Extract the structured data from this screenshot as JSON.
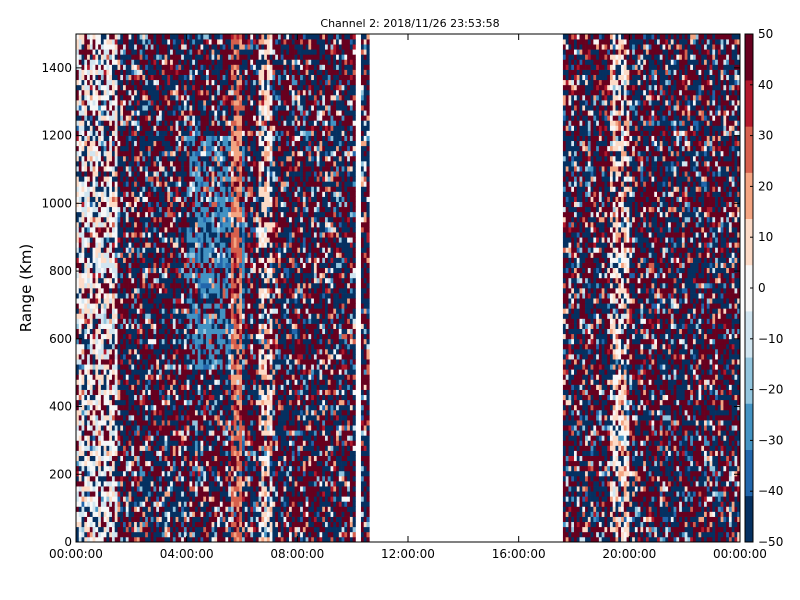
{
  "chart_data": {
    "type": "heatmap",
    "title": "Channel 2: 2018/11/26 23:53:58",
    "xlabel": "",
    "ylabel": "Range (Km)",
    "x_ticks": [
      "00:00:00",
      "04:00:00",
      "08:00:00",
      "12:00:00",
      "16:00:00",
      "20:00:00",
      "00:00:00"
    ],
    "x_tick_hours": [
      0,
      4,
      8,
      12,
      16,
      20,
      24
    ],
    "xlim_hours": [
      0,
      24
    ],
    "y_ticks": [
      "0",
      "200",
      "400",
      "600",
      "800",
      "1000",
      "1200",
      "1400"
    ],
    "y_tick_values": [
      0,
      200,
      400,
      600,
      800,
      1000,
      1200,
      1400
    ],
    "ylim": [
      0,
      1500
    ],
    "colorbar": {
      "ticks": [
        "50",
        "40",
        "30",
        "20",
        "10",
        "0",
        "−10",
        "−20",
        "−30",
        "−40",
        "−50"
      ],
      "tick_values": [
        50,
        40,
        30,
        20,
        10,
        0,
        -10,
        -20,
        -30,
        -40,
        -50
      ],
      "range": [
        -50,
        50
      ],
      "colormap": "RdBu_r",
      "colors": [
        "#053061",
        "#2166ac",
        "#4393c3",
        "#92c5de",
        "#d1e5f0",
        "#f7f7f7",
        "#fddbc7",
        "#f4a582",
        "#d6604d",
        "#b2182b",
        "#67001f"
      ]
    },
    "data_segments_hours": [
      [
        0,
        10.1
      ],
      [
        10.3,
        10.6
      ],
      [
        17.6,
        24
      ]
    ],
    "no_data_gap_hours": [
      10.6,
      17.6
    ],
    "features": [
      {
        "hour_range": [
          0,
          1.5
        ],
        "tendency": "near zero (white/pale)"
      },
      {
        "hour_range": [
          5.5,
          5.9
        ],
        "tendency": "positive ~20-30 (salmon band)"
      },
      {
        "hour_range": [
          6.5,
          7.0
        ],
        "tendency": "positive ~10 (pale band)"
      },
      {
        "hour_range": [
          4.0,
          6.0
        ],
        "tendency": "negative ~-30 (blue patch, 500-1200 km)"
      },
      {
        "hour_range": [
          19.3,
          20.0
        ],
        "tendency": "mixed pale band"
      }
    ],
    "grid": false,
    "legend": "colorbar right"
  }
}
